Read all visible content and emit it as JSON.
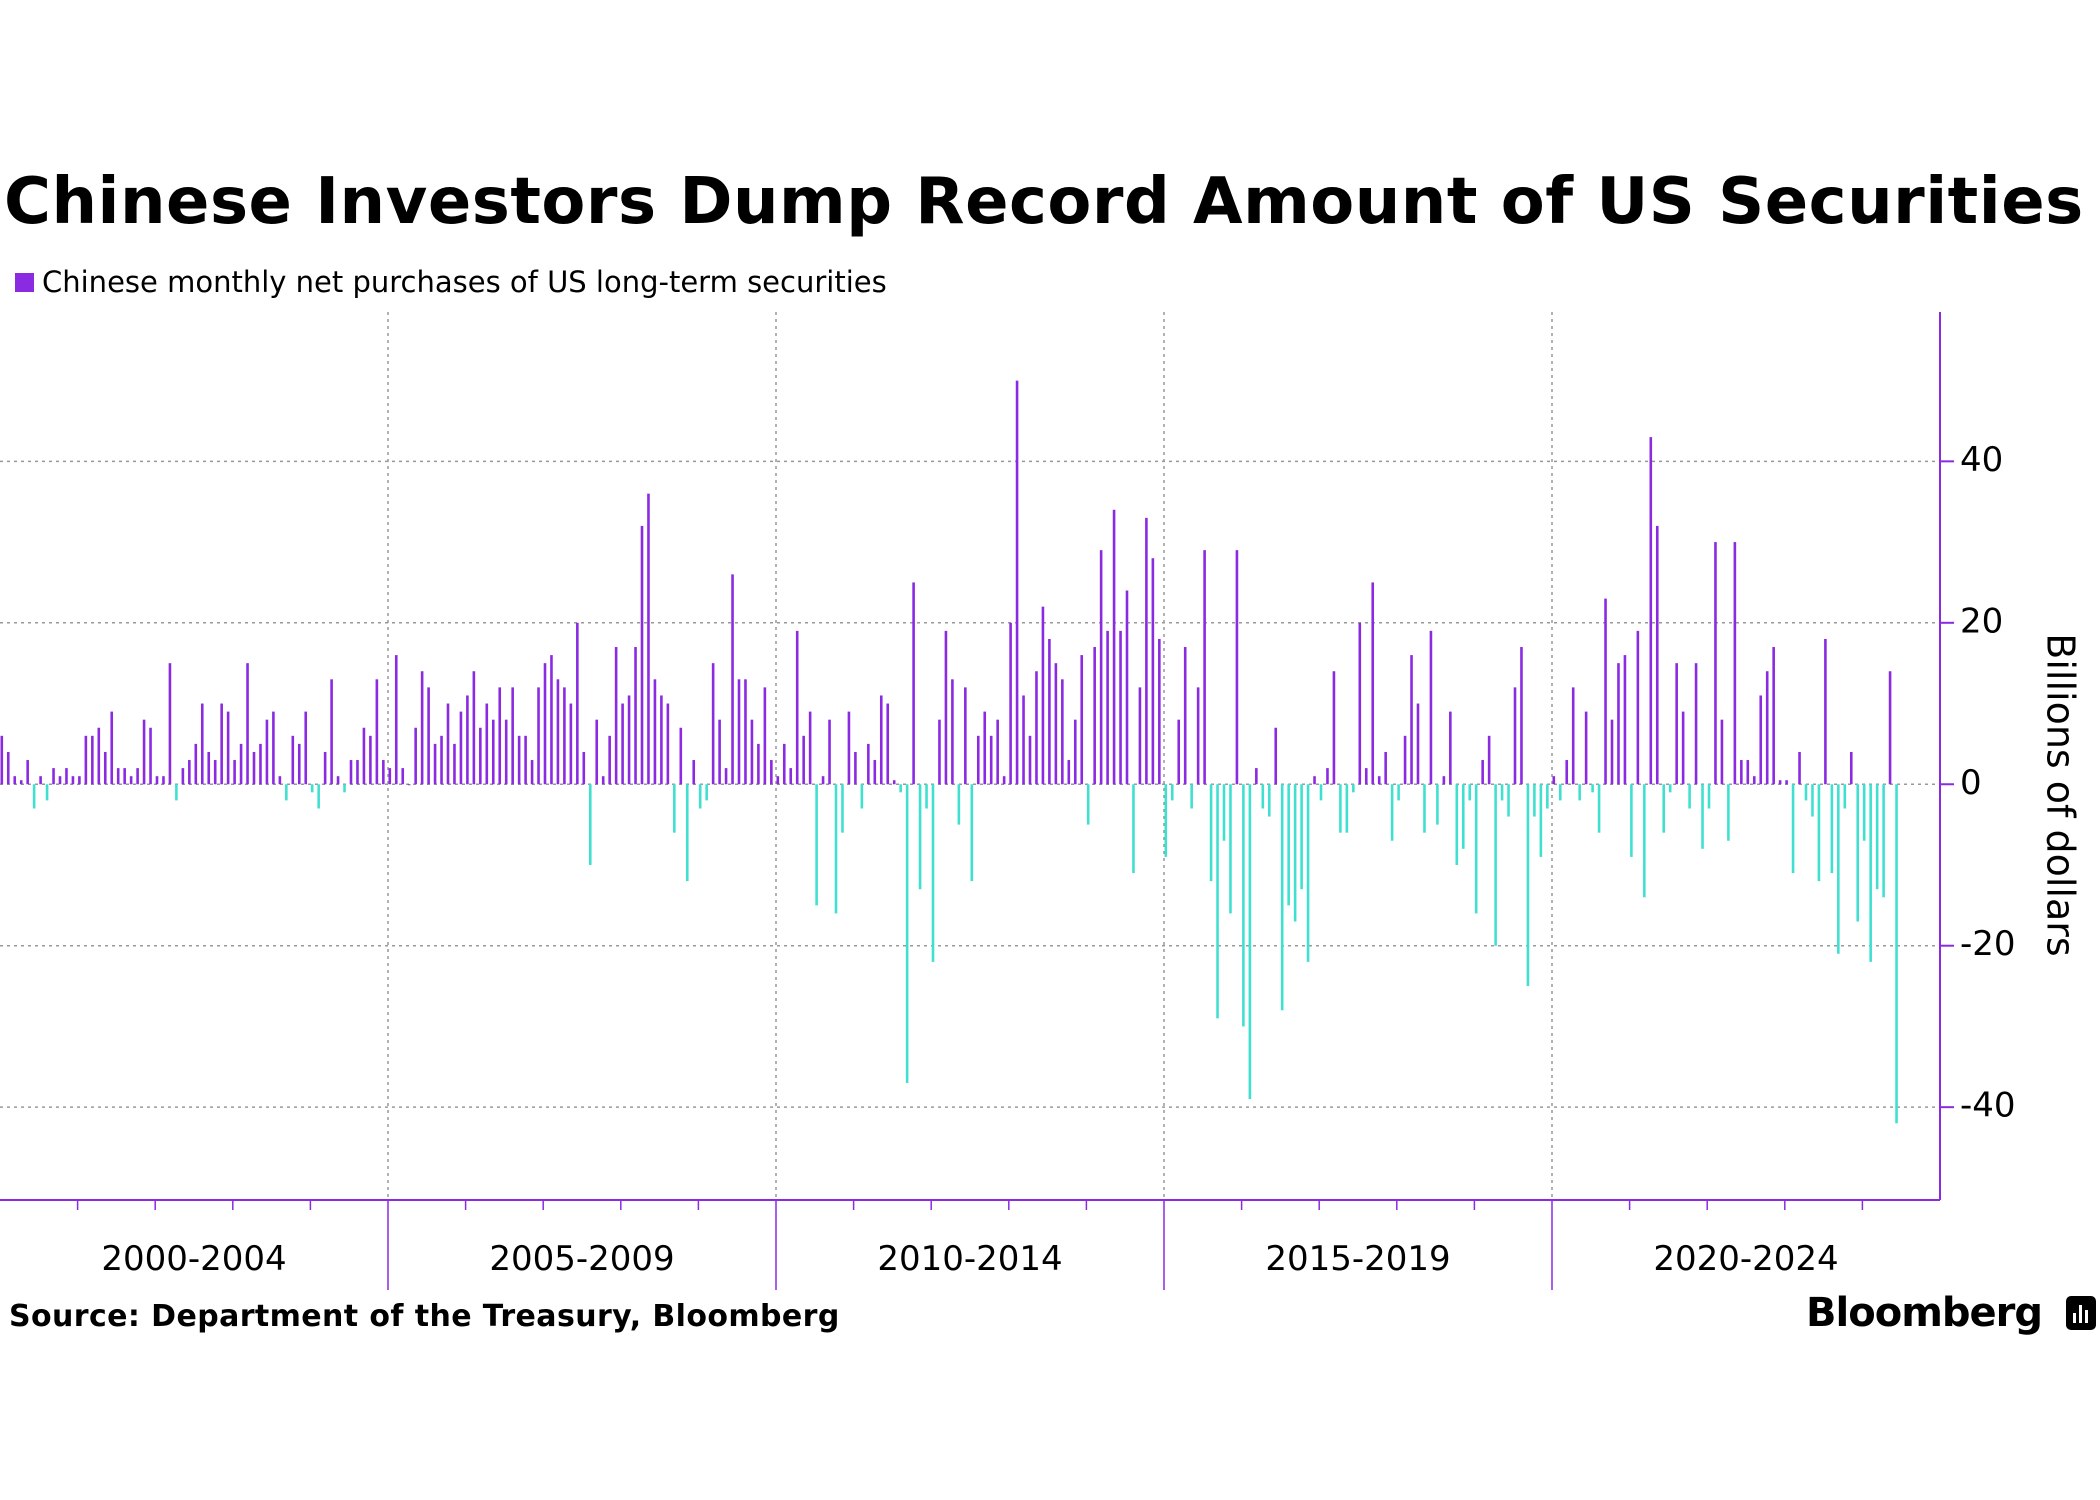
{
  "title": "Chinese Investors Dump Record Amount of US Securities",
  "source": "Source: Department of the Treasury, Bloomberg",
  "brand": "Bloomberg",
  "colors": {
    "positive": "#8a2be2",
    "negative": "#40e0d0",
    "axis": "#8a2be2",
    "grid": "#999999"
  },
  "chart_data": {
    "type": "bar",
    "title": "Chinese Investors Dump Record Amount of US Securities",
    "series": [
      {
        "name": "Chinese monthly net purchases of US long-term securities"
      }
    ],
    "ylabel": "Billions of dollars",
    "ylim": [
      -51.5,
      58.5
    ],
    "yticks": [
      -40,
      -20,
      0,
      20,
      40
    ],
    "ytick_labels": [
      "-40",
      "-20",
      "0",
      "20",
      "40"
    ],
    "period_labels": [
      "2000-2004",
      "2005-2009",
      "2010-2014",
      "2015-2019",
      "2020-2024"
    ],
    "x_start": "2000-01",
    "frequency": "monthly",
    "values": [
      6,
      4,
      1,
      0.5,
      3,
      -3,
      1,
      -2,
      2,
      1,
      2,
      1,
      1,
      6,
      6,
      7,
      4,
      9,
      2,
      2,
      1,
      2,
      8,
      7,
      1,
      1,
      15,
      -2,
      2,
      3,
      5,
      10,
      4,
      3,
      10,
      9,
      3,
      5,
      15,
      4,
      5,
      8,
      9,
      1,
      -2,
      6,
      5,
      9,
      -1,
      -3,
      4,
      13,
      1,
      -1,
      3,
      3,
      7,
      6,
      13,
      3,
      2,
      16,
      2,
      0,
      7,
      14,
      12,
      5,
      6,
      10,
      5,
      9,
      11,
      14,
      7,
      10,
      8,
      12,
      8,
      12,
      6,
      6,
      3,
      12,
      15,
      16,
      13,
      12,
      10,
      20,
      4,
      -10,
      8,
      1,
      6,
      17,
      10,
      11,
      17,
      32,
      36,
      13,
      11,
      10,
      -6,
      7,
      -12,
      3,
      -3,
      -2,
      15,
      8,
      2,
      26,
      13,
      13,
      8,
      5,
      12,
      3,
      1,
      5,
      2,
      19,
      6,
      9,
      -15,
      1,
      8,
      -16,
      -6,
      9,
      4,
      -3,
      5,
      3,
      11,
      10,
      0.5,
      -1,
      -37,
      25,
      -13,
      -3,
      -22,
      8,
      19,
      13,
      -5,
      12,
      -12,
      6,
      9,
      6,
      8,
      1,
      20,
      50,
      11,
      6,
      14,
      22,
      18,
      15,
      13,
      3,
      8,
      16,
      -5,
      17,
      29,
      19,
      34,
      19,
      24,
      -11,
      12,
      33,
      28,
      18,
      -9,
      -2,
      8,
      17,
      -3,
      12,
      29,
      -12,
      -29,
      -7,
      -16,
      29,
      -30,
      -39,
      2,
      -3,
      -4,
      7,
      -28,
      -15,
      -17,
      -13,
      -22,
      1,
      -2,
      2,
      14,
      -6,
      -6,
      -1,
      20,
      2,
      25,
      1,
      4,
      -7,
      -2,
      6,
      16,
      10,
      -6,
      19,
      -5,
      1,
      9,
      -10,
      -8,
      -2,
      -16,
      3,
      6,
      -20,
      -2,
      -4,
      12,
      17,
      -25,
      -4,
      -9,
      -3,
      1,
      -2,
      3,
      12,
      -2,
      9,
      -1,
      -6,
      23,
      8,
      15,
      16,
      -9,
      19,
      -14,
      43,
      32,
      -6,
      -1,
      15,
      9,
      -3,
      15,
      -8,
      -3,
      30,
      8,
      -7,
      30,
      3,
      3,
      1,
      11,
      14,
      17,
      0.5,
      0.5,
      -11,
      4,
      -2,
      -4,
      -12,
      18,
      -11,
      -21,
      -3,
      4,
      -17,
      -7,
      -22,
      -13,
      -14,
      14,
      -42
    ]
  }
}
